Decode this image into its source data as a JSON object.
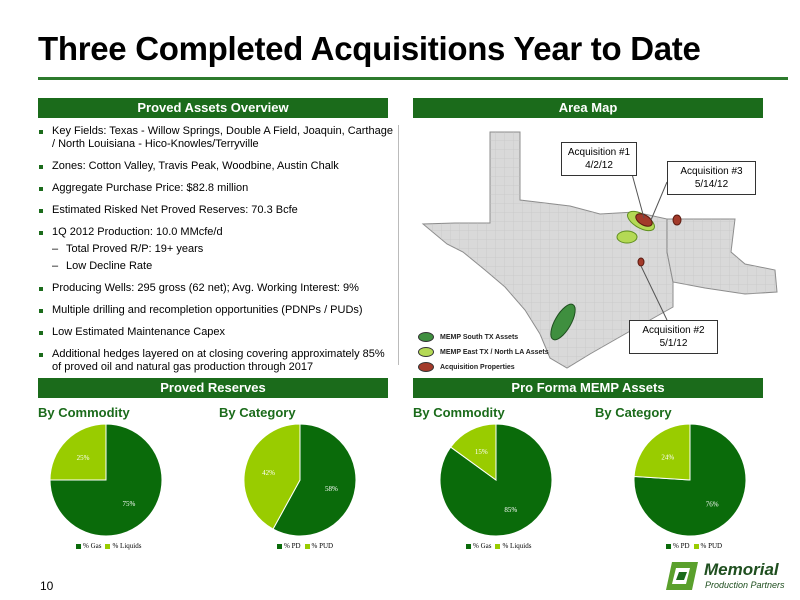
{
  "title": "Three Completed Acquisitions Year to Date",
  "proved_assets": {
    "header": "Proved Assets Overview",
    "bullets": [
      {
        "text": "Key Fields:  Texas - Willow Springs, Double A Field, Joaquin, Carthage / North Louisiana - Hico-Knowles/Terryville"
      },
      {
        "text": "Zones: Cotton Valley, Travis Peak, Woodbine, Austin Chalk"
      },
      {
        "text": "Aggregate Purchase Price:  $82.8 million"
      },
      {
        "text": "Estimated Risked Net Proved Reserves: 70.3 Bcfe"
      },
      {
        "text": "1Q 2012 Production: 10.0 MMcfe/d",
        "subs": [
          "Total Proved R/P: 19+ years",
          "Low Decline Rate"
        ]
      },
      {
        "text": "Producing Wells: 295 gross (62 net); Avg. Working Interest: 9%"
      },
      {
        "text": "Multiple drilling and recompletion opportunities (PDNPs / PUDs)"
      },
      {
        "text": "Low Estimated Maintenance Capex"
      },
      {
        "text": "Additional hedges layered on at closing covering approximately 85% of proved oil and natural gas production through 2017"
      }
    ]
  },
  "area_map": {
    "header": "Area Map",
    "callouts": {
      "acq1": {
        "label": "Acquisition #1",
        "date": "4/2/12"
      },
      "acq3": {
        "label": "Acquisition #3",
        "date": "5/14/12"
      },
      "acq2": {
        "label": "Acquisition #2",
        "date": "5/1/12"
      }
    },
    "legend": [
      "MEMP South TX Assets",
      "MEMP East TX / North LA Assets",
      "Acquisition Properties"
    ]
  },
  "proved_reserves": {
    "header": "Proved Reserves",
    "by_commodity": "By Commodity",
    "by_category": "By Category"
  },
  "pro_forma": {
    "header": "Pro Forma MEMP Assets",
    "by_commodity": "By Commodity",
    "by_category": "By Category"
  },
  "colors": {
    "dark_green": "#0a6b0a",
    "light_green": "#99cc00",
    "banner": "#1b6b1b"
  },
  "chart_data": [
    {
      "type": "pie",
      "categories": [
        "% Gas",
        "% Liquids"
      ],
      "values": [
        75,
        25
      ],
      "labels": [
        "75%",
        "25%"
      ]
    },
    {
      "type": "pie",
      "categories": [
        "% PD",
        "% PUD"
      ],
      "values": [
        58,
        42
      ],
      "labels": [
        "58%",
        "42%"
      ]
    },
    {
      "type": "pie",
      "categories": [
        "% Gas",
        "% Liquids"
      ],
      "values": [
        85,
        15
      ],
      "labels": [
        "85%",
        "15%"
      ]
    },
    {
      "type": "pie",
      "categories": [
        "% PD",
        "% PUD"
      ],
      "values": [
        76,
        24
      ],
      "labels": [
        "76%",
        "24%"
      ]
    }
  ],
  "footer": {
    "page_number": "10",
    "logo_name": "Memorial",
    "logo_tagline": "Production Partners"
  }
}
